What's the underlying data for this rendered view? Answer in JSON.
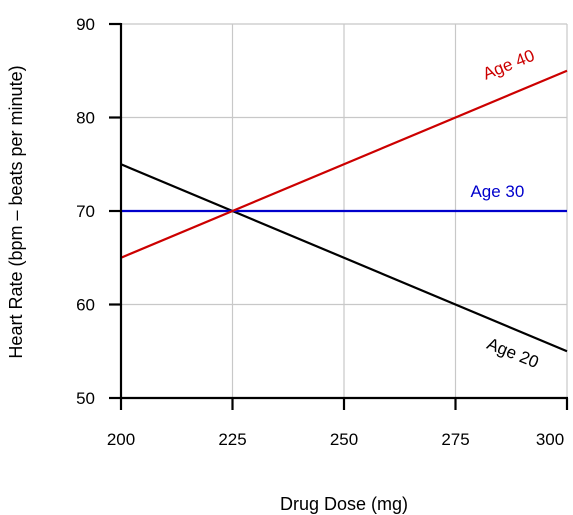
{
  "chart_data": {
    "type": "line",
    "title": "",
    "xlabel": "Drug Dose (mg)",
    "ylabel": "Heart Rate (bpm – beats per minute)",
    "xlim": [
      200,
      300
    ],
    "ylim": [
      50,
      90
    ],
    "xticks": [
      200,
      225,
      250,
      275,
      300
    ],
    "yticks": [
      50,
      60,
      70,
      80,
      90
    ],
    "grid": true,
    "legend": "none",
    "series": [
      {
        "name": "Age 20",
        "color": "#000000",
        "x": [
          200,
          300
        ],
        "y": [
          75,
          55
        ]
      },
      {
        "name": "Age 30",
        "color": "#0000cc",
        "x": [
          200,
          300
        ],
        "y": [
          70,
          70
        ]
      },
      {
        "name": "Age 40",
        "color": "#cc0000",
        "x": [
          200,
          300
        ],
        "y": [
          65,
          85
        ]
      }
    ]
  }
}
